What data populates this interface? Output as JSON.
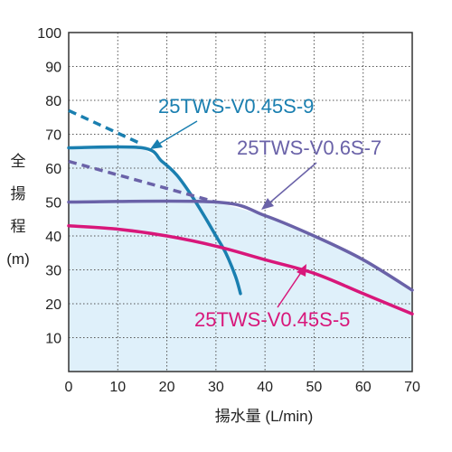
{
  "chart_data": {
    "type": "line",
    "title": "",
    "xlabel": "揚水量 (L/min)",
    "ylabel": [
      "全",
      "揚",
      "程",
      "(m)"
    ],
    "xlim": [
      0,
      70
    ],
    "ylim": [
      0,
      100
    ],
    "x_ticks": [
      "0",
      "10",
      "20",
      "30",
      "40",
      "50",
      "60",
      "70"
    ],
    "y_ticks": [
      "10",
      "20",
      "30",
      "40",
      "50",
      "60",
      "70",
      "80",
      "90",
      "100"
    ],
    "grid": true,
    "background_fill": "#dff0fa",
    "series": [
      {
        "name": "25TWS-V0.45S-9",
        "color": "#1a7fb0",
        "solid": [
          [
            0,
            66
          ],
          [
            15,
            66
          ],
          [
            19,
            62
          ],
          [
            22,
            58
          ],
          [
            25,
            52
          ],
          [
            28,
            45
          ],
          [
            30,
            40
          ],
          [
            32,
            35
          ],
          [
            34,
            28
          ],
          [
            35,
            23
          ]
        ],
        "dashed": [
          [
            0,
            77
          ],
          [
            15,
            67
          ]
        ]
      },
      {
        "name": "25TWS-V0.6S-7",
        "color": "#6a62a8",
        "solid": [
          [
            0,
            50
          ],
          [
            30,
            50
          ],
          [
            40,
            46
          ],
          [
            50,
            40
          ],
          [
            60,
            33
          ],
          [
            70,
            24
          ]
        ],
        "dashed": [
          [
            0,
            62
          ],
          [
            30,
            50
          ]
        ]
      },
      {
        "name": "25TWS-V0.45S-5",
        "color": "#d8177a",
        "solid": [
          [
            0,
            43
          ],
          [
            10,
            42
          ],
          [
            20,
            40
          ],
          [
            30,
            37
          ],
          [
            40,
            33
          ],
          [
            50,
            29
          ],
          [
            60,
            23
          ],
          [
            70,
            17
          ]
        ],
        "dashed": []
      }
    ]
  }
}
